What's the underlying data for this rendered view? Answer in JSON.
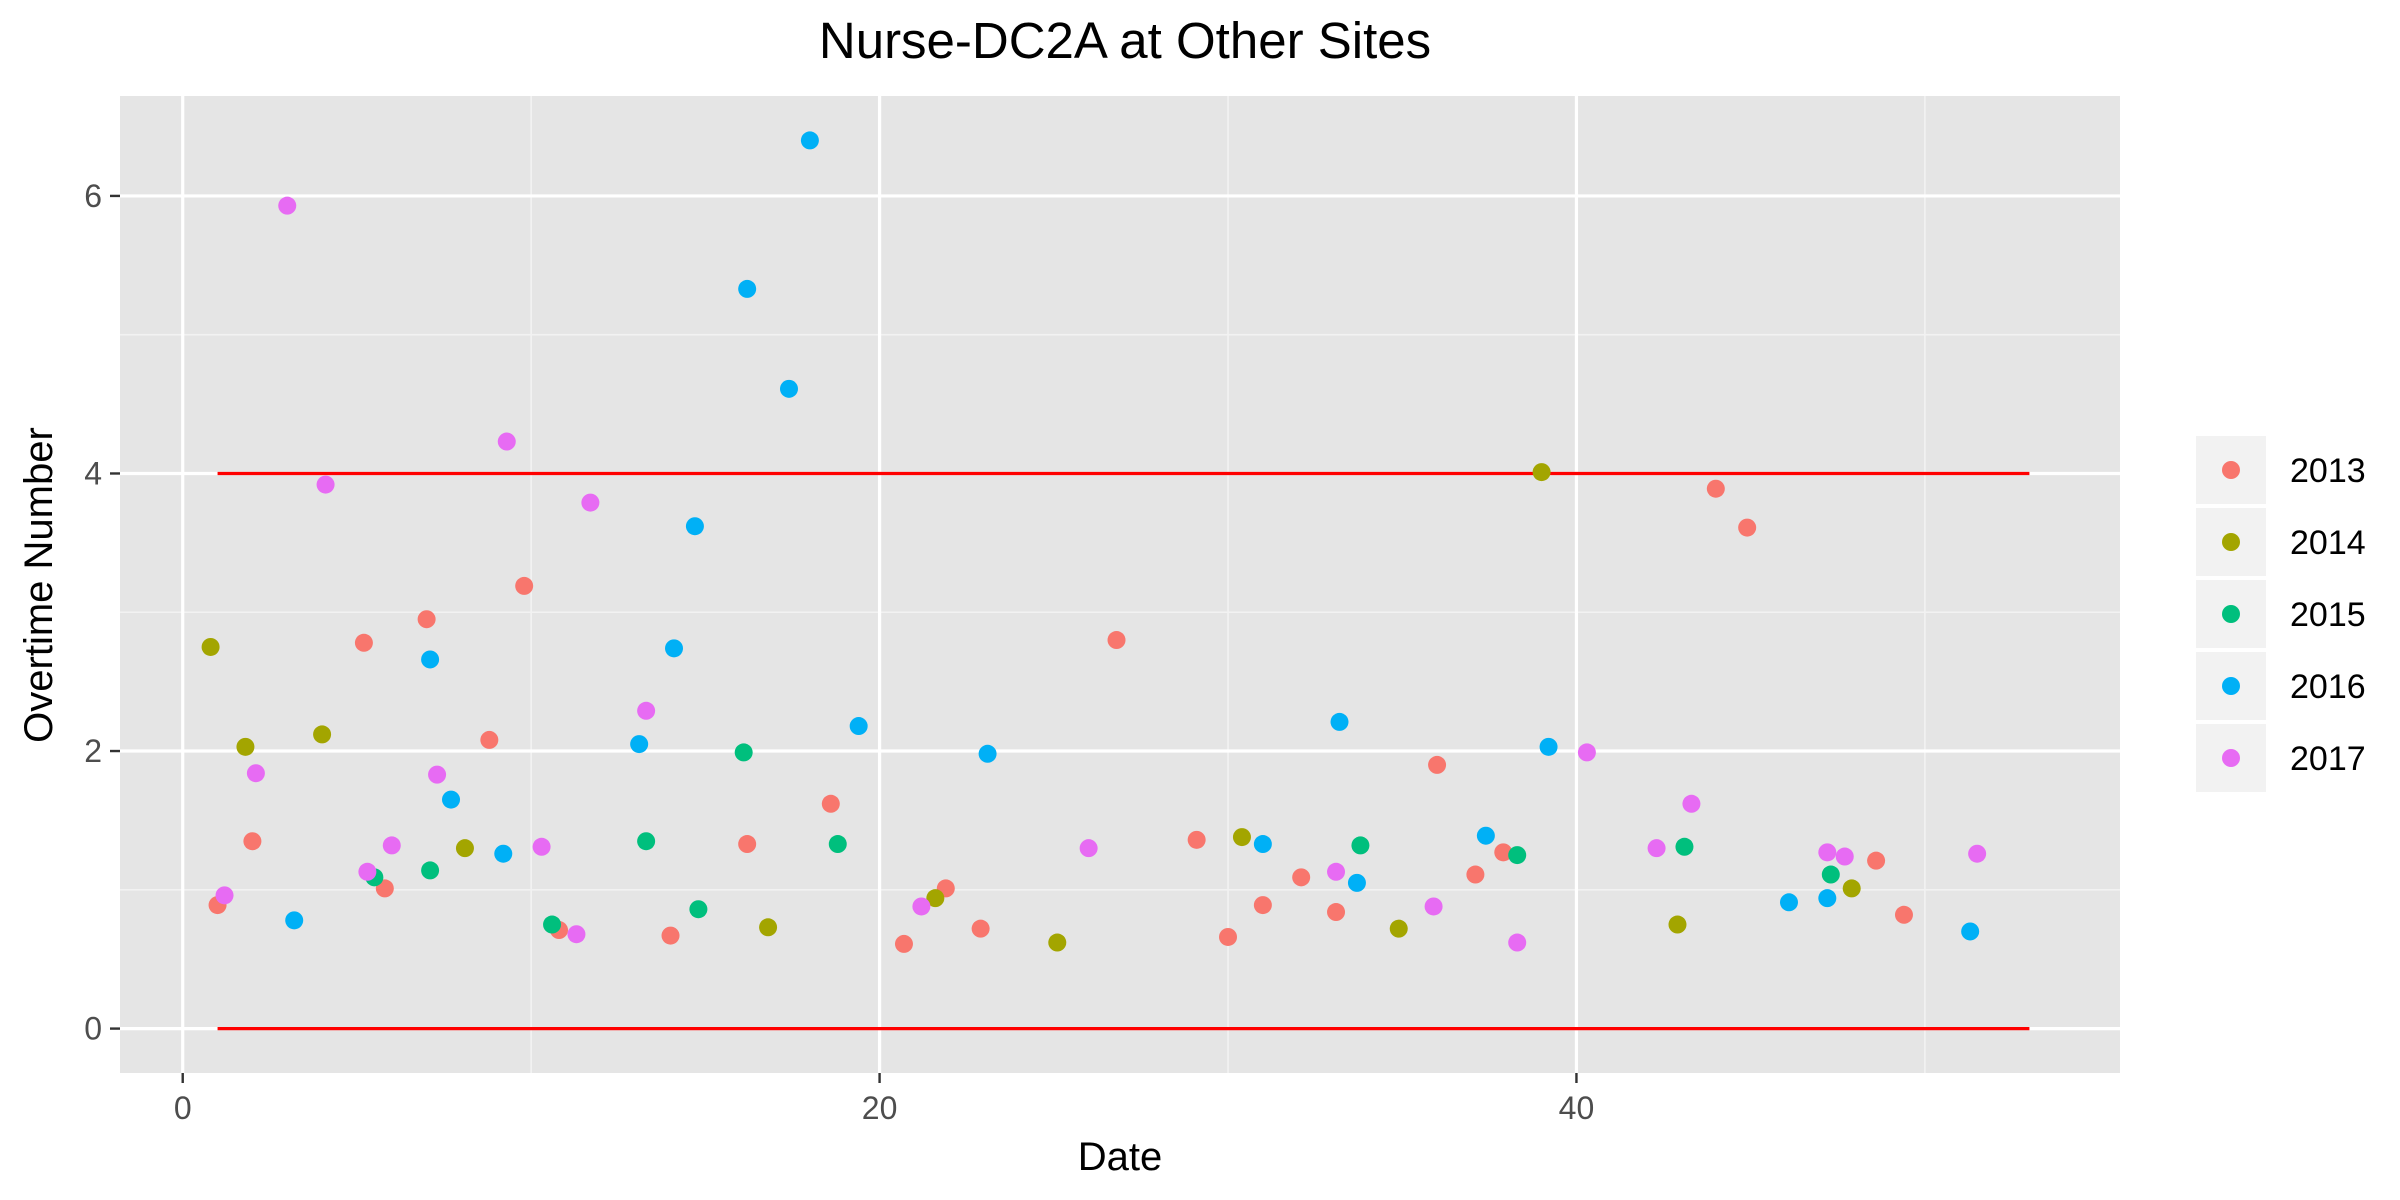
{
  "chart_data": {
    "type": "scatter",
    "title": "Nurse-DC2A at Other Sites",
    "xlabel": "Date",
    "ylabel": "Overtime Number",
    "xlim": [
      -1.8,
      55.6
    ],
    "ylim": [
      -0.32,
      6.72
    ],
    "x_ticks": [
      0,
      20,
      40
    ],
    "x_tick_labels": [
      "0",
      "20",
      "40"
    ],
    "y_ticks": [
      0,
      2,
      4,
      6
    ],
    "y_tick_labels": [
      "0",
      "2",
      "4",
      "6"
    ],
    "grid": true,
    "legend": "right",
    "reference_lines": [
      {
        "y": 4,
        "x_start": 1,
        "x_end": 53,
        "color": "#ff0000"
      },
      {
        "y": 0,
        "x_start": 1,
        "x_end": 53,
        "color": "#ff0000"
      }
    ],
    "series": [
      {
        "name": "2013",
        "color": "#f8766d",
        "points": [
          [
            1,
            0.89
          ],
          [
            2,
            1.35
          ],
          [
            5.2,
            2.78
          ],
          [
            5.8,
            1.01
          ],
          [
            7,
            2.95
          ],
          [
            8.8,
            2.08
          ],
          [
            9.8,
            3.19
          ],
          [
            10.8,
            0.71
          ],
          [
            14,
            0.67
          ],
          [
            16.2,
            1.33
          ],
          [
            18.6,
            1.62
          ],
          [
            20.7,
            0.61
          ],
          [
            21.9,
            1.01
          ],
          [
            22.9,
            0.72
          ],
          [
            26.8,
            2.8
          ],
          [
            29.1,
            1.36
          ],
          [
            30,
            0.66
          ],
          [
            31,
            0.89
          ],
          [
            32.1,
            1.09
          ],
          [
            33.1,
            0.84
          ],
          [
            36,
            1.9
          ],
          [
            37.1,
            1.11
          ],
          [
            37.9,
            1.27
          ],
          [
            44,
            3.89
          ],
          [
            44.9,
            3.61
          ],
          [
            48.6,
            1.21
          ],
          [
            49.4,
            0.82
          ]
        ]
      },
      {
        "name": "2014",
        "color": "#a3a500",
        "points": [
          [
            0.8,
            2.75
          ],
          [
            1.8,
            2.03
          ],
          [
            4,
            2.12
          ],
          [
            8.1,
            1.3
          ],
          [
            16.8,
            0.73
          ],
          [
            21.6,
            0.94
          ],
          [
            25.1,
            0.62
          ],
          [
            30.4,
            1.38
          ],
          [
            34.9,
            0.72
          ],
          [
            39,
            4.01
          ],
          [
            42.9,
            0.75
          ],
          [
            47.9,
            1.01
          ]
        ]
      },
      {
        "name": "2015",
        "color": "#00bf7d",
        "points": [
          [
            5.5,
            1.09
          ],
          [
            7.1,
            1.14
          ],
          [
            10.6,
            0.75
          ],
          [
            13.3,
            1.35
          ],
          [
            14.8,
            0.86
          ],
          [
            16.1,
            1.99
          ],
          [
            18.8,
            1.33
          ],
          [
            33.8,
            1.32
          ],
          [
            38.3,
            1.25
          ],
          [
            43.1,
            1.31
          ],
          [
            47.3,
            1.11
          ]
        ]
      },
      {
        "name": "2016",
        "color": "#00b0f6",
        "points": [
          [
            3.2,
            0.78
          ],
          [
            7.1,
            2.66
          ],
          [
            7.7,
            1.65
          ],
          [
            9.2,
            1.26
          ],
          [
            13.1,
            2.05
          ],
          [
            14.7,
            3.62
          ],
          [
            14.1,
            2.74
          ],
          [
            16.2,
            5.33
          ],
          [
            17.4,
            4.61
          ],
          [
            18,
            6.4
          ],
          [
            19.4,
            2.18
          ],
          [
            23.1,
            1.98
          ],
          [
            31,
            1.33
          ],
          [
            33.2,
            2.21
          ],
          [
            33.7,
            1.05
          ],
          [
            37.4,
            1.39
          ],
          [
            39.2,
            2.03
          ],
          [
            46.1,
            0.91
          ],
          [
            47.2,
            0.94
          ],
          [
            51.3,
            0.7
          ]
        ]
      },
      {
        "name": "2017",
        "color": "#e76bf3",
        "points": [
          [
            1.2,
            0.96
          ],
          [
            2.1,
            1.84
          ],
          [
            3,
            5.93
          ],
          [
            4.1,
            3.92
          ],
          [
            5.3,
            1.13
          ],
          [
            6,
            1.32
          ],
          [
            7.3,
            1.83
          ],
          [
            9.3,
            4.23
          ],
          [
            10.3,
            1.31
          ],
          [
            11.3,
            0.68
          ],
          [
            11.7,
            3.79
          ],
          [
            13.3,
            2.29
          ],
          [
            21.2,
            0.88
          ],
          [
            26,
            1.3
          ],
          [
            33.1,
            1.13
          ],
          [
            35.9,
            0.88
          ],
          [
            38.3,
            0.62
          ],
          [
            40.3,
            1.99
          ],
          [
            42.3,
            1.3
          ],
          [
            43.3,
            1.62
          ],
          [
            47.2,
            1.27
          ],
          [
            47.7,
            1.24
          ],
          [
            51.5,
            1.26
          ]
        ]
      }
    ]
  }
}
